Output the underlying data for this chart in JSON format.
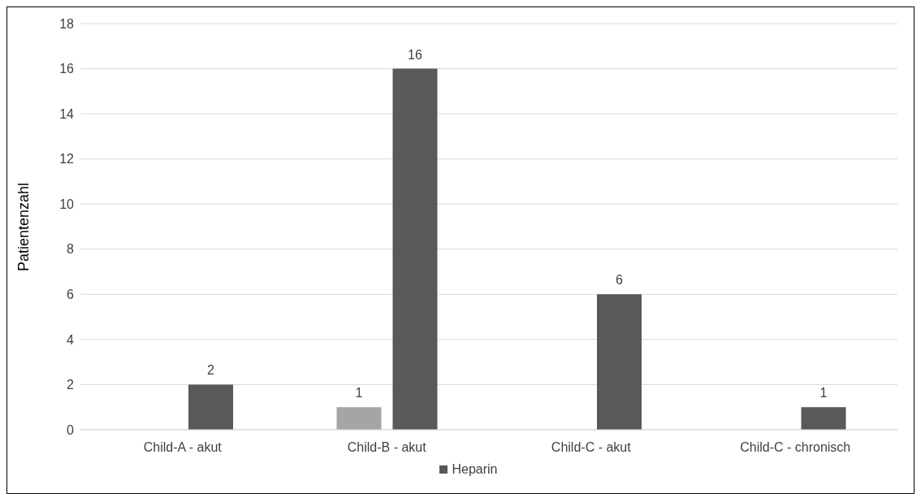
{
  "chart_data": {
    "type": "bar",
    "ylabel": "Patientenzahl",
    "categories": [
      "Child-A - akut",
      "Child-B - akut",
      "Child-C - akut",
      "Child-C - chronisch"
    ],
    "series": [
      {
        "color": "#a5a5a5",
        "values": [
          0,
          1,
          0,
          0
        ],
        "value_labels": [
          null,
          "1",
          null,
          null
        ]
      },
      {
        "name": "Heparin",
        "color": "#595959",
        "values": [
          2,
          16,
          6,
          1
        ],
        "value_labels": [
          "2",
          "16",
          "6",
          "1"
        ]
      }
    ],
    "ylim": [
      0,
      18
    ],
    "yticks": [
      0,
      2,
      4,
      6,
      8,
      10,
      12,
      14,
      16,
      18
    ],
    "grid": "y",
    "legend": "bottom"
  }
}
